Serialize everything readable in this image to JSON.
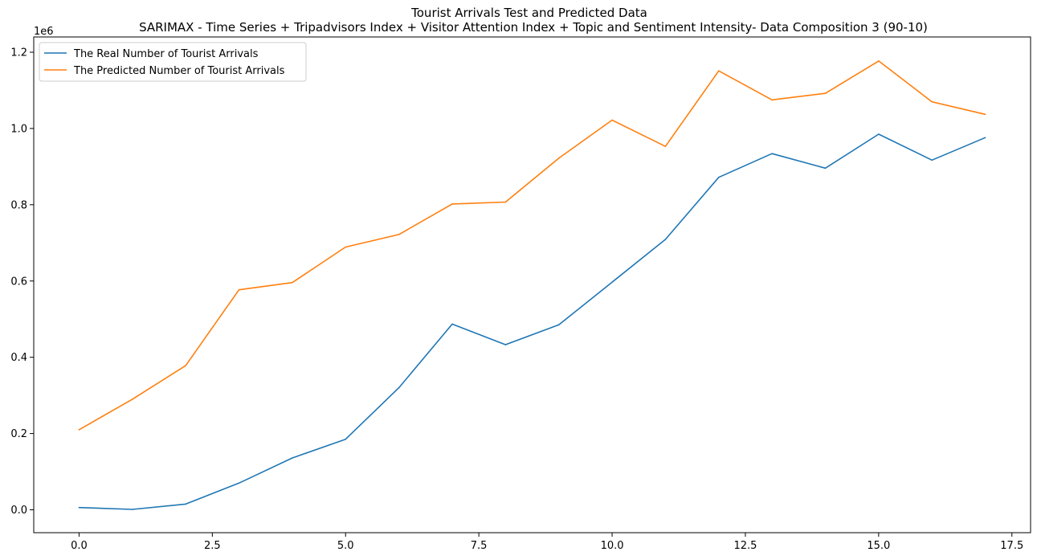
{
  "chart_data": {
    "type": "line",
    "title": "Tourist Arrivals Test and Predicted Data",
    "subtitle": "SARIMAX - Time Series + Tripadvisors Index + Visitor Attention Index + Topic and Sentiment Intensity- Data Composition 3 (90-10)",
    "xlabel": "",
    "ylabel": "",
    "y_offset_label": "1e6",
    "xlim": [
      -0.85,
      17.85
    ],
    "ylim": [
      -0.06,
      1.24
    ],
    "x_ticks": [
      0.0,
      2.5,
      5.0,
      7.5,
      10.0,
      12.5,
      15.0,
      17.5
    ],
    "x_tick_labels": [
      "0.0",
      "2.5",
      "5.0",
      "7.5",
      "10.0",
      "12.5",
      "15.0",
      "17.5"
    ],
    "y_ticks": [
      0.0,
      0.2,
      0.4,
      0.6,
      0.8,
      1.0,
      1.2
    ],
    "y_tick_labels": [
      "0.0",
      "0.2",
      "0.4",
      "0.6",
      "0.8",
      "1.0",
      "1.2"
    ],
    "grid": false,
    "legend_position": "top-left",
    "x": [
      0,
      1,
      2,
      3,
      4,
      5,
      6,
      7,
      8,
      9,
      10,
      11,
      12,
      13,
      14,
      15,
      16,
      17
    ],
    "series": [
      {
        "name": "The Real Number of Tourist Arrivals",
        "color": "#1f77b4",
        "values": [
          0.006,
          0.001,
          0.015,
          0.07,
          0.136,
          0.185,
          0.32,
          0.487,
          0.433,
          0.485,
          0.597,
          0.709,
          0.872,
          0.934,
          0.896,
          0.985,
          0.917,
          0.976
        ]
      },
      {
        "name": "The Predicted Number of Tourist Arrivals",
        "color": "#ff7f0e",
        "values": [
          0.21,
          0.29,
          0.378,
          0.577,
          0.596,
          0.689,
          0.722,
          0.802,
          0.807,
          0.922,
          1.022,
          0.953,
          1.151,
          1.075,
          1.092,
          1.177,
          1.07,
          1.037
        ]
      }
    ]
  }
}
